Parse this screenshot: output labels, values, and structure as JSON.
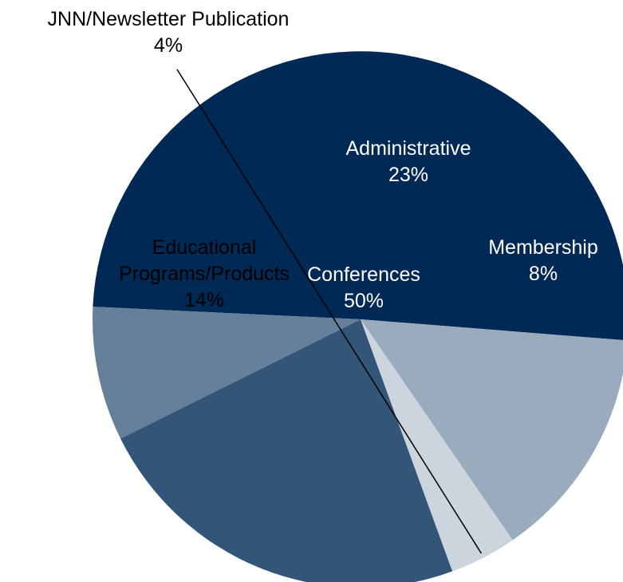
{
  "chart_data": {
    "type": "pie",
    "title": "",
    "start_angle_deg": 177.3,
    "direction": "clockwise",
    "slices": [
      {
        "name": "Conferences",
        "value": 50,
        "label_lines": [
          "Conferences"
        ],
        "percent_text": "50%",
        "color": "#012956",
        "label_color": "#ffffff"
      },
      {
        "name": "Educational Programs/Products",
        "value": 14,
        "label_lines": [
          "Educational",
          "Programs/Products"
        ],
        "percent_text": "14%",
        "color": "#99abbd",
        "label_color": "#000000"
      },
      {
        "name": "JNN/Newsletter Publication",
        "value": 4,
        "label_lines": [
          "JNN/Newsletter Publication"
        ],
        "percent_text": "4%",
        "color": "#ccd5de",
        "label_color": "#000000"
      },
      {
        "name": "Administrative",
        "value": 23,
        "label_lines": [
          "Administrative"
        ],
        "percent_text": "23%",
        "color": "#335577",
        "label_color": "#ffffff"
      },
      {
        "name": "Membership",
        "value": 8,
        "label_lines": [
          "Membership"
        ],
        "percent_text": "8%",
        "color": "#66809a",
        "label_color": "#ffffff"
      }
    ]
  }
}
